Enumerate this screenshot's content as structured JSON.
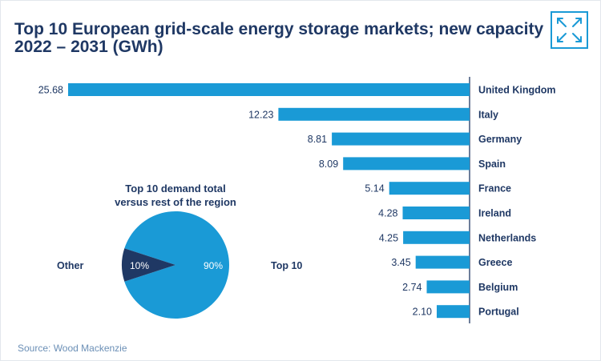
{
  "title_line1": "Top 10 European grid-scale energy storage markets; new capacity",
  "title_line2": "2022 – 2031 (GWh)",
  "source": "Source: Wood Mackenzie",
  "expand_icon": "expand-arrows-icon",
  "colors": {
    "bar": "#1a9ad6",
    "title": "#1f3864",
    "label": "#1f3864",
    "pie_other": "#1f3864",
    "pie_top": "#1a9ad6",
    "axis": "#1f3864"
  },
  "chart_data": [
    {
      "type": "bar",
      "orientation": "horizontal",
      "title": "Top 10 European grid-scale energy storage markets; new capacity 2022 – 2031 (GWh)",
      "categories": [
        "United Kingdom",
        "Italy",
        "Germany",
        "Spain",
        "France",
        "Ireland",
        "Netherlands",
        "Greece",
        "Belgium",
        "Portugal"
      ],
      "values": [
        25.68,
        12.23,
        8.81,
        8.09,
        5.14,
        4.28,
        4.25,
        3.45,
        2.74,
        2.1
      ],
      "value_labels": [
        "25.68",
        "12.23",
        "8.81",
        "8.09",
        "5.14",
        "4.28",
        "4.25",
        "3.45",
        "2.74",
        "2.10"
      ],
      "xlim": [
        0,
        25.68
      ],
      "grid": false
    },
    {
      "type": "pie",
      "title_line1": "Top 10 demand total",
      "title_line2": "versus rest of the region",
      "slices": [
        {
          "label": "Other",
          "value": 10,
          "value_label": "10%"
        },
        {
          "label": "Top 10",
          "value": 90,
          "value_label": "90%"
        }
      ]
    }
  ]
}
